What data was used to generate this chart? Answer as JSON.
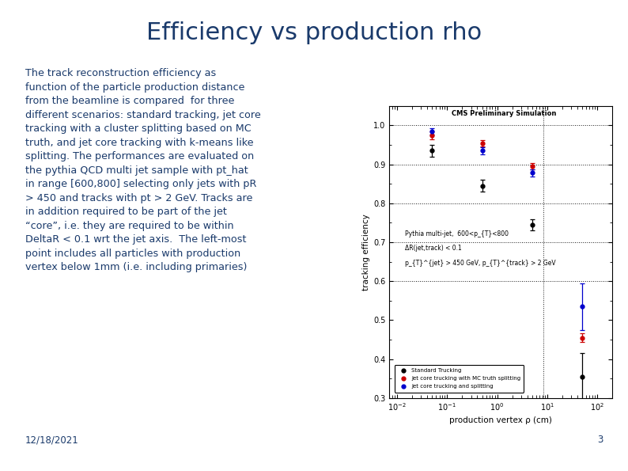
{
  "title": "Efficiency vs production rho",
  "title_color": "#1a3a6b",
  "title_fontsize": 22,
  "title_fontweight": "normal",
  "body_text": "The track reconstruction efficiency as\nfunction of the particle production distance\nfrom the beamline is compared  for three\ndifferent scenarios: standard tracking, jet core\ntracking with a cluster splitting based on MC\ntruth, and jet core tracking with k-means like\nsplitting. The performances are evaluated on\nthe pythia QCD multi jet sample with pt_hat\nin range [600,800] selecting only jets with pR\n> 450 and tracks with pt > 2 GeV. Tracks are\nin addition required to be part of the jet\n“core”, i.e. they are required to be within\nDeltaR < 0.1 wrt the jet axis.  The left-most\npoint includes all particles with production\nvertex below 1mm (i.e. including primaries)",
  "body_color": "#1a3a6b",
  "body_fontsize": 9.2,
  "date_text": "12/18/2021",
  "page_num": "3",
  "footer_color": "#1a3a6b",
  "footer_fontsize": 8.5,
  "cms_label": "CMS Preliminary Simulation",
  "plot_label1": "Pythia multi-jet,  600<p_{T}<800",
  "plot_label2": "ΔR(jet,track) < 0.1",
  "plot_label3": "p_{T}^{jet} > 450 GeV, p_{T}^{track} > 2 GeV",
  "xlabel": "production vertex ρ (cm)",
  "ylabel": "tracking efficiency",
  "ylim": [
    0.3,
    1.05
  ],
  "xlim": [
    0.007,
    200
  ],
  "yticks": [
    0.3,
    0.4,
    0.5,
    0.6,
    0.7,
    0.8,
    0.9,
    1.0
  ],
  "hlines": [
    0.6,
    0.7,
    0.8,
    0.9,
    1.0
  ],
  "vline": 8.5,
  "colors": {
    "black": "#000000",
    "red": "#cc0000",
    "blue": "#0000cc"
  },
  "series": {
    "standard": {
      "x": [
        0.05,
        0.5,
        5.0,
        50.0
      ],
      "y": [
        0.935,
        0.845,
        0.745,
        0.355
      ],
      "yerr": [
        0.015,
        0.015,
        0.015,
        0.06
      ],
      "color": "#000000",
      "label": "Standard Trucking"
    },
    "mc_truth": {
      "x": [
        0.05,
        0.5,
        5.0,
        50.0
      ],
      "y": [
        0.975,
        0.955,
        0.895,
        0.455
      ],
      "yerr": [
        0.01,
        0.008,
        0.008,
        0.012
      ],
      "color": "#cc0000",
      "label": "Jet core trucking with MC truth splitting"
    },
    "kmeans": {
      "x": [
        0.05,
        0.5,
        5.0,
        50.0
      ],
      "y": [
        0.985,
        0.935,
        0.878,
        0.535
      ],
      "yerr": [
        0.008,
        0.01,
        0.01,
        0.06
      ],
      "color": "#0000cc",
      "label": "Jet core trucking and splitting"
    }
  },
  "bg_color": "#ffffff",
  "plot_area_color": "#ffffff",
  "bottom_bar_color": "#1a3a6b",
  "bottom_bar_height": 0.014
}
